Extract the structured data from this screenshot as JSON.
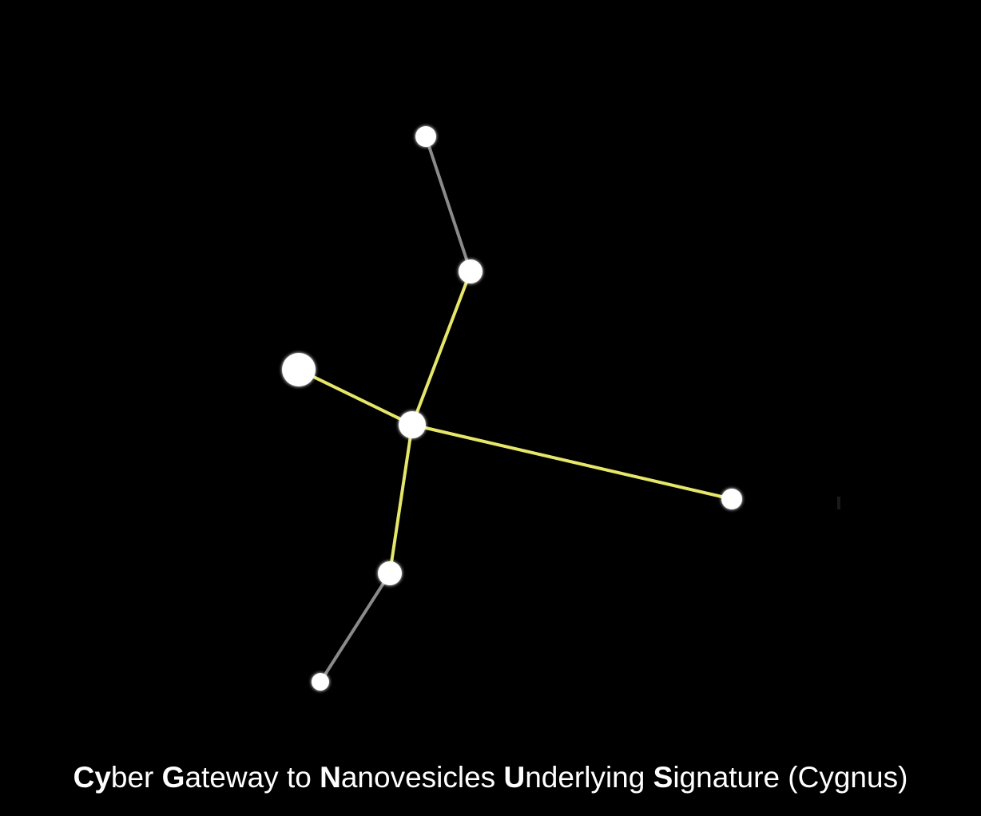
{
  "diagram": {
    "background_color": "#000000",
    "star_color": "#ffffff",
    "main_line_color": "#e6e66a",
    "secondary_line_color": "#8a8a8a"
  },
  "caption": {
    "parts": [
      {
        "text": "Cy",
        "bold": true
      },
      {
        "text": "ber ",
        "bold": false
      },
      {
        "text": "G",
        "bold": true
      },
      {
        "text": "ateway to ",
        "bold": false
      },
      {
        "text": "N",
        "bold": true
      },
      {
        "text": "anovesicles ",
        "bold": false
      },
      {
        "text": "U",
        "bold": true
      },
      {
        "text": "nderlying ",
        "bold": false
      },
      {
        "text": "S",
        "bold": true
      },
      {
        "text": "ignature (Cygnus)",
        "bold": false
      }
    ]
  }
}
